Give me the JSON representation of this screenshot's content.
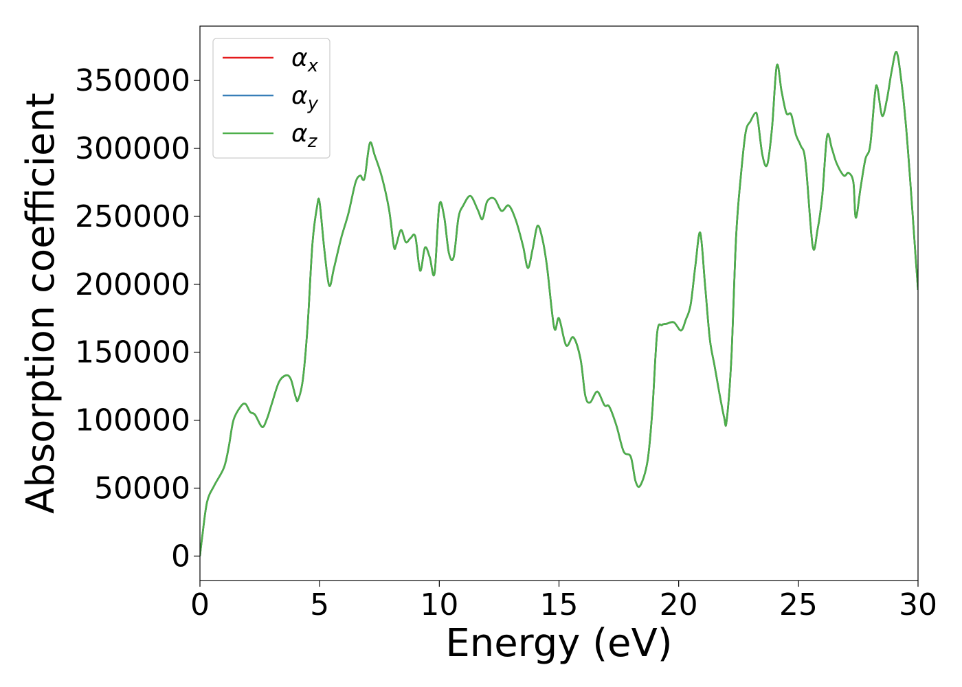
{
  "chart_data": {
    "type": "line",
    "title": "",
    "xlabel": "Energy (eV)",
    "ylabel": "Absorption coefficient",
    "xlim": [
      0,
      30
    ],
    "ylim": [
      -18000,
      390000
    ],
    "xticks": [
      0,
      5,
      10,
      15,
      20,
      25,
      30
    ],
    "yticks": [
      0,
      50000,
      100000,
      150000,
      200000,
      250000,
      300000,
      350000
    ],
    "grid": false,
    "legend_position": "top-left",
    "series": [
      {
        "name": "α_x",
        "symbol": "α",
        "subscript": "x",
        "color": "#e41a1c",
        "x": [
          0,
          0.1,
          0.3,
          0.6,
          1.0,
          1.2,
          1.4,
          1.7,
          1.9,
          2.1,
          2.3,
          2.6,
          2.8,
          3.0,
          3.3,
          3.6,
          3.8,
          4.0,
          4.1,
          4.3,
          4.5,
          4.7,
          4.9,
          5.0,
          5.2,
          5.4,
          5.6,
          5.9,
          6.2,
          6.5,
          6.7,
          6.8,
          6.9,
          7.1,
          7.3,
          7.6,
          7.9,
          8.1,
          8.2,
          8.4,
          8.6,
          8.8,
          9.0,
          9.2,
          9.4,
          9.6,
          9.8,
          10.0,
          10.2,
          10.4,
          10.6,
          10.8,
          11.0,
          11.3,
          11.6,
          11.8,
          12.0,
          12.3,
          12.6,
          12.9,
          13.2,
          13.5,
          13.7,
          13.9,
          14.1,
          14.3,
          14.5,
          14.8,
          15.0,
          15.3,
          15.6,
          15.9,
          16.1,
          16.3,
          16.6,
          16.9,
          17.1,
          17.4,
          17.7,
          18.0,
          18.2,
          18.4,
          18.7,
          18.9,
          19.1,
          19.3,
          19.5,
          19.8,
          20.1,
          20.3,
          20.5,
          20.7,
          20.9,
          21.1,
          21.3,
          21.5,
          21.7,
          21.9,
          22.0,
          22.2,
          22.4,
          22.6,
          22.8,
          23.0,
          23.2,
          23.3,
          23.5,
          23.7,
          23.9,
          24.1,
          24.3,
          24.5,
          24.7,
          24.9,
          25.1,
          25.3,
          25.6,
          25.8,
          26.0,
          26.2,
          26.4,
          26.6,
          26.9,
          27.1,
          27.3,
          27.4,
          27.6,
          27.8,
          28.0,
          28.2,
          28.3,
          28.5,
          28.7,
          28.9,
          29.1,
          29.3,
          29.5,
          29.7,
          29.9,
          30.0
        ],
        "y": [
          0,
          15000,
          40000,
          52000,
          65000,
          80000,
          100000,
          110000,
          112000,
          106000,
          104000,
          95000,
          101000,
          112000,
          128000,
          133000,
          130000,
          117000,
          115000,
          130000,
          170000,
          230000,
          258000,
          260000,
          225000,
          199000,
          212000,
          234000,
          252000,
          275000,
          280000,
          277000,
          280000,
          304000,
          295000,
          279000,
          255000,
          228000,
          229000,
          240000,
          231000,
          234000,
          235000,
          210000,
          227000,
          220000,
          208000,
          258000,
          250000,
          223000,
          220000,
          249000,
          258000,
          265000,
          255000,
          248000,
          261000,
          263000,
          254000,
          258000,
          247000,
          228000,
          212000,
          226000,
          243000,
          234000,
          213000,
          168000,
          175000,
          155000,
          161000,
          145000,
          118000,
          113000,
          121000,
          111000,
          110000,
          96000,
          77000,
          73000,
          55000,
          52000,
          70000,
          107000,
          164000,
          170000,
          171000,
          172000,
          166000,
          174000,
          185000,
          214000,
          238000,
          200000,
          160000,
          140000,
          120000,
          102000,
          99000,
          145000,
          235000,
          280000,
          312000,
          320000,
          326000,
          322000,
          295000,
          288000,
          315000,
          361000,
          342000,
          326000,
          325000,
          310000,
          302000,
          290000,
          228000,
          240000,
          265000,
          309000,
          300000,
          289000,
          280000,
          282000,
          275000,
          249000,
          271000,
          292000,
          302000,
          340000,
          345000,
          324000,
          336000,
          357000,
          371000,
          350000,
          316000,
          270000,
          220000,
          196000
        ]
      },
      {
        "name": "α_y",
        "symbol": "α",
        "subscript": "y",
        "color": "#377eb8",
        "x": [
          0,
          0.1,
          0.3,
          0.6,
          1.0,
          1.2,
          1.4,
          1.7,
          1.9,
          2.1,
          2.3,
          2.6,
          2.8,
          3.0,
          3.3,
          3.6,
          3.8,
          4.0,
          4.1,
          4.3,
          4.5,
          4.7,
          4.9,
          5.0,
          5.2,
          5.4,
          5.6,
          5.9,
          6.2,
          6.5,
          6.7,
          6.8,
          6.9,
          7.1,
          7.3,
          7.6,
          7.9,
          8.1,
          8.2,
          8.4,
          8.6,
          8.8,
          9.0,
          9.2,
          9.4,
          9.6,
          9.8,
          10.0,
          10.2,
          10.4,
          10.6,
          10.8,
          11.0,
          11.3,
          11.6,
          11.8,
          12.0,
          12.3,
          12.6,
          12.9,
          13.2,
          13.5,
          13.7,
          13.9,
          14.1,
          14.3,
          14.5,
          14.8,
          15.0,
          15.3,
          15.6,
          15.9,
          16.1,
          16.3,
          16.6,
          16.9,
          17.1,
          17.4,
          17.7,
          18.0,
          18.2,
          18.4,
          18.7,
          18.9,
          19.1,
          19.3,
          19.5,
          19.8,
          20.1,
          20.3,
          20.5,
          20.7,
          20.9,
          21.1,
          21.3,
          21.5,
          21.7,
          21.9,
          22.0,
          22.2,
          22.4,
          22.6,
          22.8,
          23.0,
          23.2,
          23.3,
          23.5,
          23.7,
          23.9,
          24.1,
          24.3,
          24.5,
          24.7,
          24.9,
          25.1,
          25.3,
          25.6,
          25.8,
          26.0,
          26.2,
          26.4,
          26.6,
          26.9,
          27.1,
          27.3,
          27.4,
          27.6,
          27.8,
          28.0,
          28.2,
          28.3,
          28.5,
          28.7,
          28.9,
          29.1,
          29.3,
          29.5,
          29.7,
          29.9,
          30.0
        ],
        "y": [
          0,
          15000,
          40000,
          52000,
          65000,
          80000,
          100000,
          110000,
          112000,
          106000,
          104000,
          95000,
          101000,
          112000,
          128000,
          133000,
          130000,
          117000,
          115000,
          130000,
          170000,
          230000,
          258000,
          260000,
          225000,
          199000,
          212000,
          234000,
          252000,
          275000,
          280000,
          277000,
          280000,
          304000,
          295000,
          279000,
          255000,
          228000,
          229000,
          240000,
          231000,
          234000,
          235000,
          210000,
          227000,
          220000,
          208000,
          258000,
          250000,
          223000,
          220000,
          249000,
          258000,
          265000,
          255000,
          248000,
          261000,
          263000,
          254000,
          258000,
          247000,
          228000,
          212000,
          226000,
          243000,
          234000,
          213000,
          168000,
          175000,
          155000,
          161000,
          145000,
          118000,
          113000,
          121000,
          111000,
          110000,
          96000,
          77000,
          73000,
          55000,
          52000,
          70000,
          107000,
          164000,
          170000,
          171000,
          172000,
          166000,
          174000,
          185000,
          214000,
          238000,
          200000,
          160000,
          140000,
          120000,
          102000,
          99000,
          145000,
          235000,
          280000,
          312000,
          320000,
          326000,
          322000,
          295000,
          288000,
          315000,
          361000,
          342000,
          326000,
          325000,
          310000,
          302000,
          290000,
          228000,
          240000,
          265000,
          309000,
          300000,
          289000,
          280000,
          282000,
          275000,
          249000,
          271000,
          292000,
          302000,
          340000,
          345000,
          324000,
          336000,
          357000,
          371000,
          350000,
          316000,
          270000,
          220000,
          196000
        ]
      },
      {
        "name": "α_z",
        "symbol": "α",
        "subscript": "z",
        "color": "#4daf4a",
        "x": [
          0,
          0.1,
          0.3,
          0.6,
          1.0,
          1.2,
          1.4,
          1.7,
          1.9,
          2.1,
          2.3,
          2.6,
          2.8,
          3.0,
          3.3,
          3.6,
          3.8,
          4.0,
          4.1,
          4.3,
          4.5,
          4.7,
          4.9,
          5.0,
          5.2,
          5.4,
          5.6,
          5.9,
          6.2,
          6.5,
          6.7,
          6.8,
          6.9,
          7.1,
          7.3,
          7.6,
          7.9,
          8.1,
          8.2,
          8.4,
          8.6,
          8.8,
          9.0,
          9.2,
          9.4,
          9.6,
          9.8,
          10.0,
          10.2,
          10.4,
          10.6,
          10.8,
          11.0,
          11.3,
          11.6,
          11.8,
          12.0,
          12.3,
          12.6,
          12.9,
          13.2,
          13.5,
          13.7,
          13.9,
          14.1,
          14.3,
          14.5,
          14.8,
          15.0,
          15.3,
          15.6,
          15.9,
          16.1,
          16.3,
          16.6,
          16.9,
          17.1,
          17.4,
          17.7,
          18.0,
          18.2,
          18.4,
          18.7,
          18.9,
          19.1,
          19.3,
          19.5,
          19.8,
          20.1,
          20.3,
          20.5,
          20.7,
          20.9,
          21.1,
          21.3,
          21.5,
          21.7,
          21.9,
          22.0,
          22.2,
          22.4,
          22.6,
          22.8,
          23.0,
          23.2,
          23.3,
          23.5,
          23.7,
          23.9,
          24.1,
          24.3,
          24.5,
          24.7,
          24.9,
          25.1,
          25.3,
          25.6,
          25.8,
          26.0,
          26.2,
          26.4,
          26.6,
          26.9,
          27.1,
          27.3,
          27.4,
          27.6,
          27.8,
          28.0,
          28.2,
          28.3,
          28.5,
          28.7,
          28.9,
          29.1,
          29.3,
          29.5,
          29.7,
          29.9,
          30.0
        ],
        "y": [
          0,
          15000,
          40000,
          52000,
          65000,
          80000,
          100000,
          110000,
          112000,
          106000,
          104000,
          95000,
          101000,
          112000,
          128000,
          133000,
          130000,
          117000,
          115000,
          130000,
          170000,
          230000,
          258000,
          260000,
          225000,
          199000,
          212000,
          234000,
          252000,
          275000,
          280000,
          277000,
          280000,
          304000,
          295000,
          279000,
          255000,
          228000,
          229000,
          240000,
          231000,
          234000,
          235000,
          210000,
          227000,
          220000,
          208000,
          258000,
          250000,
          223000,
          220000,
          249000,
          258000,
          265000,
          255000,
          248000,
          261000,
          263000,
          254000,
          258000,
          247000,
          228000,
          212000,
          226000,
          243000,
          234000,
          213000,
          168000,
          175000,
          155000,
          161000,
          145000,
          118000,
          113000,
          121000,
          111000,
          110000,
          96000,
          77000,
          73000,
          55000,
          52000,
          70000,
          107000,
          164000,
          170000,
          171000,
          172000,
          166000,
          174000,
          185000,
          214000,
          238000,
          200000,
          160000,
          140000,
          120000,
          102000,
          99000,
          145000,
          235000,
          280000,
          312000,
          320000,
          326000,
          322000,
          295000,
          288000,
          315000,
          361000,
          342000,
          326000,
          325000,
          310000,
          302000,
          290000,
          228000,
          240000,
          265000,
          309000,
          300000,
          289000,
          280000,
          282000,
          275000,
          249000,
          271000,
          292000,
          302000,
          340000,
          345000,
          324000,
          336000,
          357000,
          371000,
          350000,
          316000,
          270000,
          220000,
          196000
        ]
      }
    ]
  }
}
